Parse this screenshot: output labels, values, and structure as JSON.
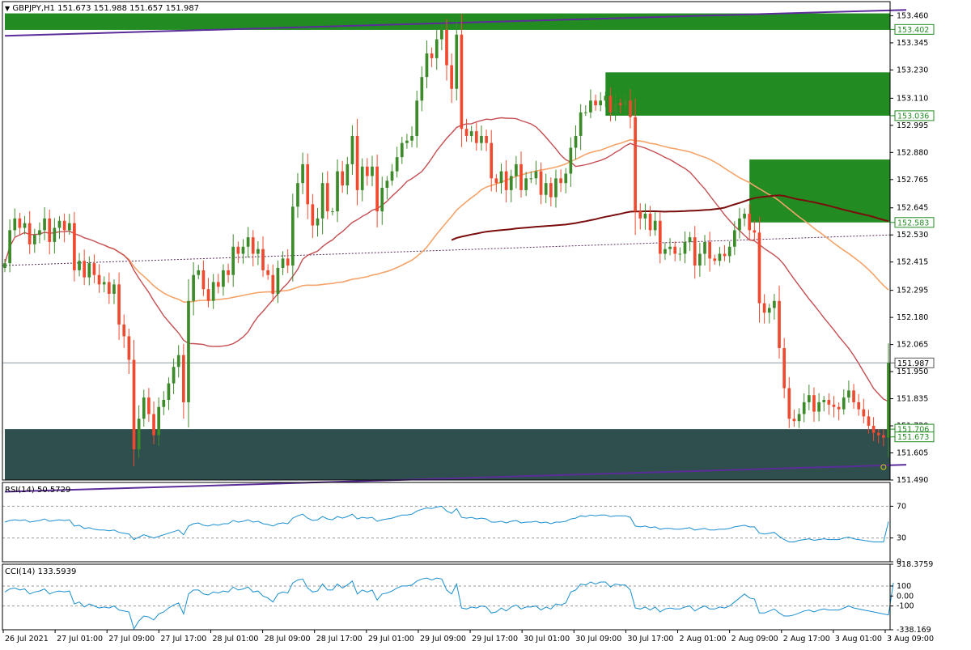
{
  "window": {
    "symbol_line": "GBPJPY,H1  151.673 151.988 151.657 151.987",
    "rsi_label": "RSI(14) 50.5729",
    "cci_label": "CCI(14) 133.5939"
  },
  "colors": {
    "background": "#ffffff",
    "bull": "#3d8a2a",
    "bear": "#ef4a2f",
    "zone_green": "#228b22",
    "zone_dark": "#2f4f4f",
    "trendline": "#5b2d99",
    "ma_fast": "#c44e52",
    "ma_mid": "#f4a46a",
    "ma_slow": "#7a0d0d",
    "ma_dotted": "#5a2a5a",
    "indicator_line": "#1a8fcf"
  },
  "chart_data": [
    {
      "type": "candlestick",
      "title": "GBPJPY,H1  151.673 151.988 151.657 151.987",
      "ylim": [
        151.49,
        153.52
      ],
      "y_ticks": [
        "153.460",
        "153.345",
        "153.230",
        "153.110",
        "152.995",
        "152.880",
        "152.765",
        "152.645",
        "152.530",
        "152.415",
        "152.295",
        "152.180",
        "152.065",
        "151.950",
        "151.835",
        "151.720",
        "151.605",
        "151.490"
      ],
      "price_tags": [
        {
          "label": "153.402",
          "value": 153.402,
          "style": "green"
        },
        {
          "label": "153.036",
          "value": 153.036,
          "style": "green"
        },
        {
          "label": "152.583",
          "value": 152.583,
          "style": "green"
        },
        {
          "label": "151.987",
          "value": 151.987,
          "style": "current"
        },
        {
          "label": "151.706",
          "value": 151.706,
          "style": "green"
        },
        {
          "label": "151.673",
          "value": 151.673,
          "style": "green"
        }
      ],
      "x_labels": [
        "26 Jul 2021",
        "27 Jul 01:00",
        "27 Jul 09:00",
        "27 Jul 17:00",
        "28 Jul 01:00",
        "28 Jul 09:00",
        "28 Jul 17:00",
        "29 Jul 01:00",
        "29 Jul 09:00",
        "29 Jul 17:00",
        "30 Jul 01:00",
        "30 Jul 09:00",
        "30 Jul 17:00",
        "2 Aug 01:00",
        "2 Aug 09:00",
        "2 Aug 17:00",
        "3 Aug 01:00",
        "3 Aug 09:00"
      ],
      "zones": [
        {
          "bar_start": 0,
          "bar_end": 180,
          "top": 153.47,
          "bottom": 153.4,
          "color": "green"
        },
        {
          "bar_start": 121,
          "bar_end": 180,
          "top": 153.22,
          "bottom": 153.036,
          "color": "green"
        },
        {
          "bar_start": 150,
          "bar_end": 180,
          "top": 152.85,
          "bottom": 152.583,
          "color": "green"
        },
        {
          "bar_start": 0,
          "bar_end": 180,
          "top": 151.706,
          "bottom": 151.49,
          "color": "dark"
        }
      ],
      "trendlines": [
        {
          "x1": 0,
          "y1": 153.375,
          "x2": 190,
          "y2": 153.485
        },
        {
          "x1": 0,
          "y1": 151.44,
          "x2": 190,
          "y2": 151.555
        }
      ],
      "closes": [
        152.41,
        152.55,
        152.6,
        152.56,
        152.58,
        152.49,
        152.53,
        152.55,
        152.6,
        152.5,
        152.56,
        152.59,
        152.55,
        152.58,
        152.38,
        152.42,
        152.35,
        152.41,
        152.36,
        152.32,
        152.33,
        152.28,
        152.32,
        152.15,
        152.1,
        152.0,
        151.62,
        151.75,
        151.84,
        151.77,
        151.68,
        151.8,
        151.83,
        151.9,
        151.97,
        152.02,
        151.82,
        152.25,
        152.36,
        152.38,
        152.3,
        152.25,
        152.33,
        152.31,
        152.38,
        152.36,
        152.48,
        152.45,
        152.48,
        152.52,
        152.45,
        152.47,
        152.38,
        152.36,
        152.28,
        152.39,
        152.43,
        152.4,
        152.65,
        152.75,
        152.83,
        152.66,
        152.57,
        152.6,
        152.75,
        152.63,
        152.63,
        152.8,
        152.74,
        152.83,
        152.95,
        152.72,
        152.82,
        152.78,
        152.82,
        152.63,
        152.73,
        152.76,
        152.8,
        152.86,
        152.92,
        152.93,
        152.95,
        153.1,
        153.2,
        153.3,
        153.28,
        153.36,
        153.4,
        153.25,
        153.15,
        153.38,
        152.98,
        152.95,
        152.97,
        152.92,
        152.95,
        152.92,
        152.77,
        152.75,
        152.8,
        152.72,
        152.78,
        152.83,
        152.72,
        152.77,
        152.77,
        152.8,
        152.7,
        152.75,
        152.69,
        152.77,
        152.75,
        152.79,
        152.9,
        152.95,
        153.05,
        153.05,
        153.1,
        153.08,
        153.1,
        153.12,
        153.05,
        153.09,
        153.08,
        153.1,
        153.03,
        152.63,
        152.6,
        152.62,
        152.55,
        152.59,
        152.45,
        152.47,
        152.48,
        152.45,
        152.45,
        152.5,
        152.52,
        152.4,
        152.45,
        152.5,
        152.43,
        152.42,
        152.45,
        152.44,
        152.48,
        152.55,
        152.6,
        152.62,
        152.55,
        152.54,
        152.24,
        152.2,
        152.22,
        152.25,
        152.05,
        151.88,
        151.75,
        151.74,
        151.77,
        151.82,
        151.85,
        151.78,
        151.82,
        151.83,
        151.81,
        151.8,
        151.79,
        151.84,
        151.87,
        151.82,
        151.79,
        151.76,
        151.72,
        151.69,
        151.68,
        151.67,
        151.987
      ]
    },
    {
      "type": "line",
      "title": "RSI(14) 50.5729",
      "ylim": [
        0,
        100
      ],
      "y_ticks": [
        "70",
        "30",
        "0"
      ],
      "levels": [
        70,
        30
      ],
      "values": [
        50,
        52,
        53,
        52,
        53,
        50,
        51,
        52,
        54,
        51,
        52,
        53,
        52,
        53,
        45,
        46,
        42,
        43,
        41,
        40,
        40,
        39,
        40,
        37,
        36,
        35,
        28,
        31,
        34,
        32,
        30,
        32,
        34,
        36,
        38,
        40,
        34,
        45,
        48,
        49,
        46,
        45,
        47,
        46,
        48,
        48,
        52,
        50,
        51,
        53,
        50,
        51,
        48,
        47,
        45,
        48,
        49,
        48,
        55,
        58,
        60,
        55,
        52,
        53,
        57,
        54,
        53,
        57,
        55,
        57,
        60,
        54,
        56,
        55,
        56,
        51,
        53,
        54,
        55,
        57,
        59,
        59,
        60,
        64,
        66,
        68,
        67,
        69,
        70,
        64,
        61,
        67,
        56,
        55,
        56,
        54,
        55,
        54,
        50,
        50,
        51,
        49,
        51,
        52,
        49,
        50,
        50,
        51,
        49,
        50,
        48,
        50,
        50,
        51,
        54,
        55,
        58,
        57,
        59,
        58,
        59,
        59,
        57,
        58,
        58,
        58,
        56,
        45,
        44,
        45,
        43,
        44,
        41,
        42,
        42,
        41,
        41,
        42,
        43,
        40,
        41,
        42,
        40,
        40,
        41,
        41,
        42,
        44,
        45,
        46,
        44,
        44,
        36,
        35,
        36,
        37,
        32,
        28,
        25,
        25,
        27,
        28,
        29,
        27,
        28,
        29,
        28,
        28,
        28,
        30,
        31,
        29,
        28,
        27,
        26,
        25,
        25,
        25,
        50.57
      ]
    },
    {
      "type": "line",
      "title": "CCI(14) 133.5939",
      "ylim": [
        -338.169,
        318.3759
      ],
      "y_ticks": [
        "318.3759",
        "100",
        "0.00",
        "-100",
        "-338.169"
      ],
      "levels": [
        100,
        -100
      ],
      "values": [
        40,
        70,
        80,
        60,
        70,
        20,
        40,
        50,
        70,
        20,
        40,
        50,
        40,
        50,
        -80,
        -60,
        -110,
        -80,
        -100,
        -120,
        -110,
        -120,
        -100,
        -140,
        -150,
        -160,
        -330,
        -250,
        -200,
        -210,
        -240,
        -180,
        -160,
        -120,
        -90,
        -70,
        -180,
        20,
        60,
        60,
        20,
        10,
        40,
        30,
        50,
        40,
        90,
        60,
        70,
        90,
        40,
        50,
        0,
        -20,
        -60,
        20,
        40,
        30,
        130,
        160,
        170,
        80,
        40,
        50,
        120,
        60,
        60,
        120,
        80,
        110,
        150,
        20,
        60,
        40,
        60,
        -40,
        20,
        30,
        50,
        80,
        100,
        100,
        110,
        150,
        170,
        180,
        160,
        180,
        170,
        60,
        20,
        120,
        -120,
        -130,
        -110,
        -120,
        -100,
        -110,
        -170,
        -160,
        -120,
        -150,
        -110,
        -90,
        -130,
        -110,
        -110,
        -100,
        -140,
        -110,
        -130,
        -80,
        -90,
        -70,
        40,
        60,
        120,
        110,
        140,
        120,
        140,
        140,
        90,
        120,
        110,
        110,
        60,
        -120,
        -130,
        -110,
        -140,
        -110,
        -160,
        -130,
        -120,
        -130,
        -130,
        -110,
        -100,
        -150,
        -120,
        -100,
        -130,
        -130,
        -110,
        -120,
        -100,
        -60,
        -20,
        20,
        -20,
        -30,
        -170,
        -170,
        -150,
        -130,
        -170,
        -200,
        -200,
        -190,
        -170,
        -150,
        -140,
        -160,
        -140,
        -130,
        -140,
        -140,
        -140,
        -120,
        -100,
        -120,
        -130,
        -140,
        -150,
        -160,
        -170,
        -180,
        -190,
        133.59
      ]
    }
  ]
}
